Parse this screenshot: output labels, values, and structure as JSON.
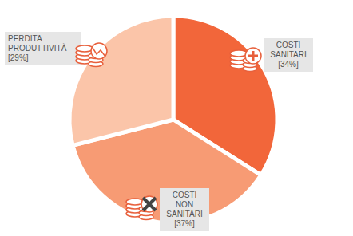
{
  "chart_data": {
    "type": "pie",
    "categories": [
      "COSTI SANITARI",
      "COSTI NON SANITARI",
      "PERDITA PRODUTTIVITÀ"
    ],
    "values": [
      34,
      37,
      29
    ],
    "value_labels": [
      "[34%]",
      "[37%]",
      "[29%]"
    ],
    "colors": [
      "#f2663a",
      "#f79b74",
      "#fbc5a9"
    ],
    "data_labels": true
  }
}
